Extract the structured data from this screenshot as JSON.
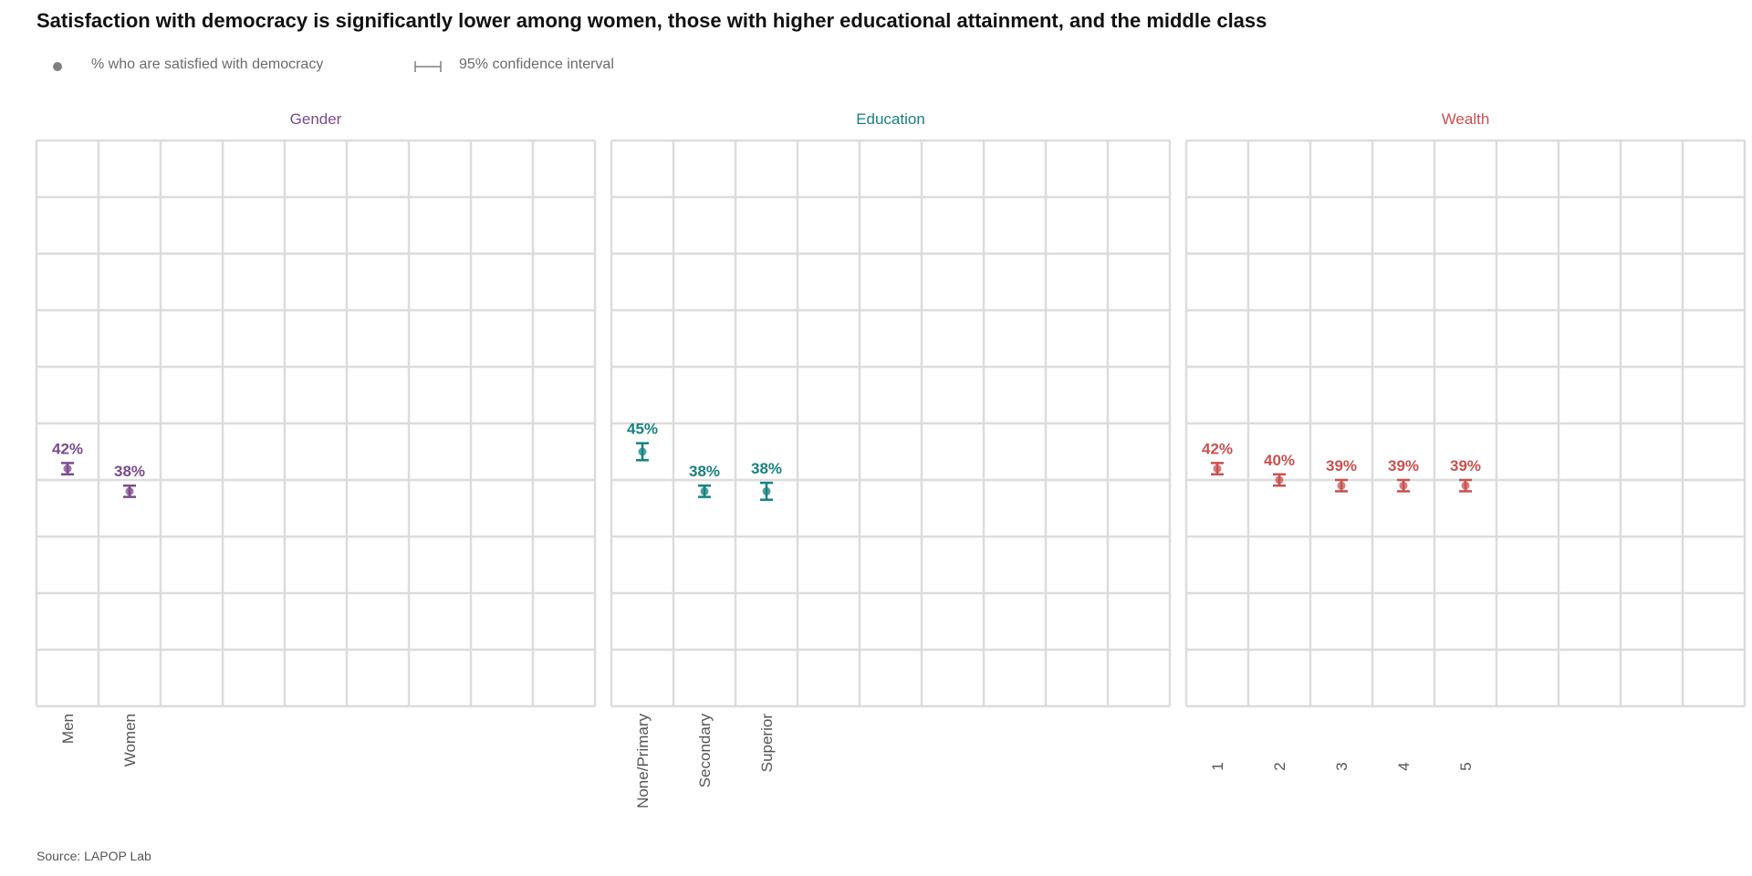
{
  "title": "Satisfaction with democracy is significantly lower among women, those with higher educational attainment, and the middle class",
  "legend": {
    "point_label": "% who are satisfied with democracy",
    "ci_label": "95% confidence interval"
  },
  "source": "Source: LAPOP Lab",
  "colors": {
    "gender": "#7b4a8c",
    "education": "#16827f",
    "wealth": "#c9514f",
    "grid": "#dcdcdc",
    "tick_text": "#555555"
  },
  "chart_data": [
    {
      "type": "scatter",
      "facet": "Gender",
      "color": "#7b4a8c",
      "categories": [
        "Men",
        "Women"
      ],
      "values": [
        42,
        38
      ],
      "ci_low": [
        41,
        37
      ],
      "ci_high": [
        43,
        39
      ],
      "labels": [
        "42%",
        "38%"
      ],
      "ylim": [
        0,
        100
      ],
      "grid": true
    },
    {
      "type": "scatter",
      "facet": "Education",
      "color": "#16827f",
      "categories": [
        "None/Primary",
        "Secondary",
        "Superior"
      ],
      "values": [
        45,
        38,
        38
      ],
      "ci_low": [
        43.5,
        37,
        36.5
      ],
      "ci_high": [
        46.5,
        39,
        39.5
      ],
      "labels": [
        "45%",
        "38%",
        "38%"
      ],
      "ylim": [
        0,
        100
      ],
      "grid": true
    },
    {
      "type": "scatter",
      "facet": "Wealth",
      "color": "#c9514f",
      "categories": [
        "1",
        "2",
        "3",
        "4",
        "5"
      ],
      "values": [
        42,
        40,
        39,
        39,
        39
      ],
      "ci_low": [
        41,
        39,
        38,
        38,
        38
      ],
      "ci_high": [
        43,
        41,
        40,
        40,
        40
      ],
      "labels": [
        "42%",
        "40%",
        "39%",
        "39%",
        "39%"
      ],
      "ylim": [
        0,
        100
      ],
      "grid": true
    }
  ]
}
